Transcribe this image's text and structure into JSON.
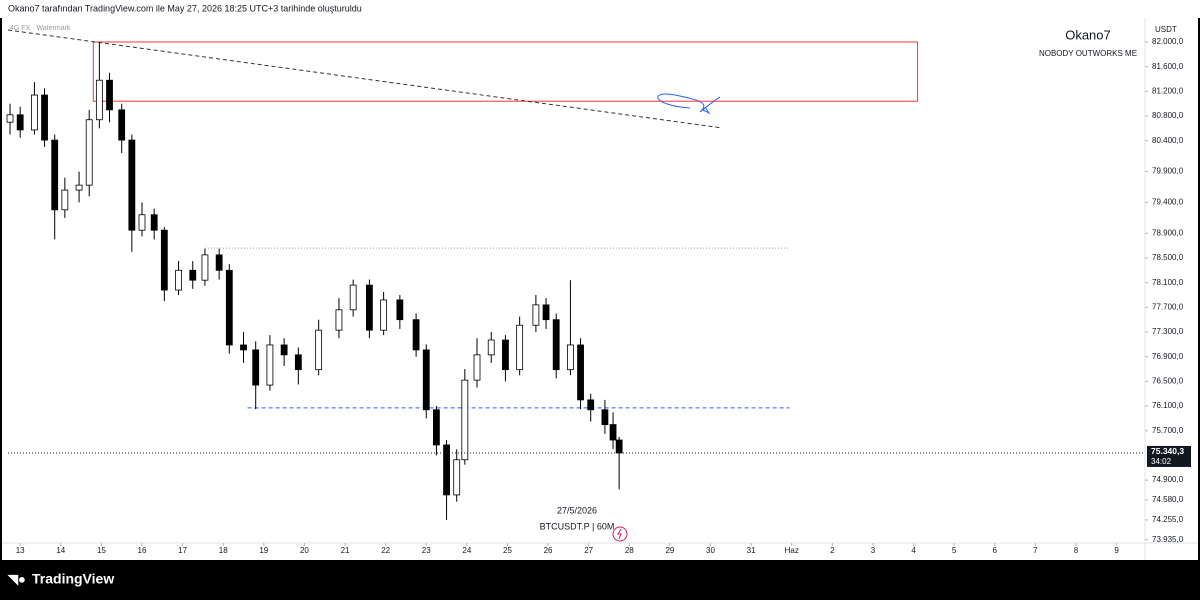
{
  "header": {
    "caption": "Okano7 tarafından TradingView.com ile May 27, 2026 18:25 UTC+3 tarihinde oluşturuldu",
    "watermark": "4G FX · Watermark",
    "author": "Okano7",
    "motto": "NOBODY OUTWORKS ME",
    "logo": "TradingView"
  },
  "chart_data": {
    "type": "candlestick",
    "symbol": "BTCUSDT.P | 60M",
    "date_note": "27/5/2026",
    "currency": "USDT",
    "color": "#000000",
    "x": [
      12.75,
      13.0,
      13.35,
      13.6,
      13.85,
      14.1,
      14.45,
      14.7,
      14.95,
      15.2,
      15.5,
      15.75,
      16.0,
      16.3,
      16.55,
      16.9,
      17.25,
      17.55,
      17.9,
      18.15,
      18.5,
      18.8,
      19.15,
      19.5,
      19.85,
      20.35,
      20.85,
      21.2,
      21.6,
      21.95,
      22.35,
      22.75,
      23.0,
      23.25,
      23.5,
      23.75,
      23.95,
      24.25,
      24.6,
      24.95,
      25.3,
      25.7,
      25.95,
      26.2,
      26.55,
      26.8,
      27.05,
      27.4,
      27.6,
      27.75
    ],
    "open": [
      80700,
      80820,
      80575,
      81140,
      80410,
      79280,
      79600,
      79680,
      80740,
      81380,
      80900,
      80410,
      78950,
      79200,
      78950,
      77980,
      78300,
      78140,
      78550,
      78300,
      77090,
      77010,
      76440,
      77090,
      76930,
      76690,
      77330,
      77660,
      78060,
      77330,
      77820,
      77500,
      77010,
      76040,
      75470,
      74660,
      75230,
      76520,
      76930,
      77170,
      76690,
      77410,
      77740,
      77500,
      76690,
      77090,
      76200,
      76040,
      75800,
      75550
    ],
    "high": [
      81000,
      80950,
      81350,
      81250,
      80500,
      79800,
      79900,
      80900,
      82000,
      81500,
      81000,
      80500,
      79400,
      79300,
      79000,
      78450,
      78450,
      78650,
      78650,
      78400,
      77300,
      77150,
      77250,
      77200,
      77050,
      77500,
      77850,
      78150,
      78150,
      77950,
      77900,
      77600,
      77100,
      76100,
      75550,
      75400,
      76700,
      77200,
      77300,
      77250,
      77550,
      77900,
      77850,
      77600,
      78140,
      77200,
      76300,
      76200,
      76000,
      75600
    ],
    "low": [
      80500,
      80450,
      80500,
      80300,
      78800,
      79150,
      79400,
      79500,
      80600,
      80700,
      80200,
      78600,
      78850,
      78800,
      77800,
      77900,
      78000,
      78050,
      78150,
      76950,
      76800,
      76050,
      76350,
      76750,
      76450,
      76600,
      77200,
      77550,
      77200,
      77250,
      77350,
      76900,
      75900,
      75300,
      74255,
      74550,
      75150,
      76400,
      76800,
      76500,
      76600,
      77300,
      77350,
      76550,
      76600,
      76050,
      75850,
      75650,
      75400,
      74750
    ],
    "close": [
      80820,
      80575,
      81140,
      80410,
      79280,
      79600,
      79680,
      80740,
      81380,
      80900,
      80410,
      78950,
      79200,
      78950,
      77980,
      78300,
      78140,
      78550,
      78300,
      77090,
      77010,
      76440,
      77090,
      76930,
      76690,
      77330,
      77660,
      78060,
      77330,
      77820,
      77500,
      77010,
      76040,
      75470,
      74660,
      75230,
      76520,
      76930,
      77170,
      76690,
      77410,
      77740,
      77500,
      76690,
      77090,
      76200,
      76040,
      75800,
      75550,
      75340.3
    ],
    "last_price_label": "75.340,3",
    "countdown": "34:02",
    "xlim": [
      12.7,
      40.7
    ],
    "xticks": [
      13,
      14,
      15,
      16,
      17,
      18,
      19,
      20,
      21,
      22,
      23,
      24,
      25,
      26,
      27,
      28,
      29,
      30,
      31,
      {
        "value": 32,
        "label": "Haz"
      },
      {
        "value": 33,
        "label": "2"
      },
      {
        "value": 34,
        "label": "3"
      },
      {
        "value": 35,
        "label": "4"
      },
      {
        "value": 36,
        "label": "5"
      },
      {
        "value": 37,
        "label": "6"
      },
      {
        "value": 38,
        "label": "7"
      },
      {
        "value": 39,
        "label": "8"
      },
      {
        "value": 40,
        "label": "9"
      }
    ],
    "ylim": [
      73800,
      82194
    ],
    "yticks": [
      {
        "value": 82000,
        "label": "82.000,0"
      },
      {
        "value": 81600,
        "label": "81.600,0"
      },
      {
        "value": 81200,
        "label": "81.200,0"
      },
      {
        "value": 80800,
        "label": "80.800,0"
      },
      {
        "value": 80400,
        "label": "80.400,0"
      },
      {
        "value": 79900,
        "label": "79.900,0"
      },
      {
        "value": 79400,
        "label": "79.400,0"
      },
      {
        "value": 78900,
        "label": "78.900,0"
      },
      {
        "value": 78500,
        "label": "78.500,0"
      },
      {
        "value": 78100,
        "label": "78.100,0"
      },
      {
        "value": 77700,
        "label": "77.700,0"
      },
      {
        "value": 77300,
        "label": "77.300,0"
      },
      {
        "value": 76900,
        "label": "76.900,0"
      },
      {
        "value": 76500,
        "label": "76.500,0"
      },
      {
        "value": 76100,
        "label": "76.100,0"
      },
      {
        "value": 75700,
        "label": "75.700,0"
      },
      {
        "value": 74900,
        "label": "74.900,0"
      },
      {
        "value": 74580,
        "label": "74.580,0"
      },
      {
        "value": 74255,
        "label": "74.255,0"
      },
      {
        "value": 73935,
        "label": "73.935,0"
      }
    ],
    "zone": {
      "x": [
        14.8,
        35.1
      ],
      "y": [
        81040,
        82000
      ],
      "color": "#f23645"
    },
    "trendline": {
      "x": [
        12.7,
        30.25
      ],
      "y": [
        82194,
        80610
      ],
      "color": "#333333"
    },
    "levels": [
      {
        "price": 78660,
        "x": [
          17.55,
          31.9
        ],
        "color": "#9598a1"
      },
      {
        "price": 76070,
        "x": [
          18.6,
          31.95
        ],
        "color": "#2962ff"
      }
    ]
  }
}
